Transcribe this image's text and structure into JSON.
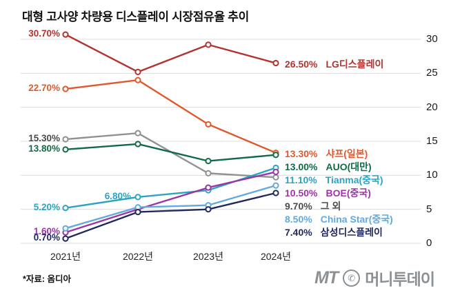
{
  "title": "대형 고사양 차량용 디스플레이 시장점유율 추이",
  "footer": {
    "source": "*자료: 옴디아",
    "logo_mt": "MT",
    "logo_phone_icon": "phone-icon",
    "logo_name": "머니투데이"
  },
  "chart_data": {
    "type": "line",
    "x": [
      "2021년",
      "2022년",
      "2023년",
      "2024년"
    ],
    "ylim": [
      0,
      30
    ],
    "yticks": [
      30,
      25,
      20,
      15,
      10,
      5,
      0
    ],
    "grid": true,
    "legend_position": "right-of-last-point",
    "series": [
      {
        "name": "LG디스플레이",
        "color": "#b23230",
        "values": [
          30.7,
          25.2,
          29.2,
          26.5
        ],
        "start_label": "30.70%",
        "end_label": "26.50%"
      },
      {
        "name": "샤프(일본)",
        "color": "#e0592d",
        "values": [
          22.7,
          24.0,
          17.5,
          13.3
        ],
        "start_label": "22.70%",
        "end_label": "13.30%"
      },
      {
        "name": "그 외",
        "color": "#8e9293",
        "label_color": "#4a4a4a",
        "values": [
          15.3,
          16.2,
          10.3,
          9.7
        ],
        "start_label": "15.30%",
        "end_label": "9.70%"
      },
      {
        "name": "AUO(대만)",
        "color": "#106b46",
        "values": [
          13.8,
          14.6,
          12.1,
          13.0
        ],
        "start_label": "13.80%",
        "end_label": "13.00%"
      },
      {
        "name": "Tianma(중국)",
        "color": "#2aa4c0",
        "values": [
          5.2,
          6.8,
          7.8,
          11.1
        ],
        "start_label": "5.20%",
        "mid_label": {
          "x_index": 1,
          "text": "6.80%"
        },
        "end_label": "11.10%"
      },
      {
        "name": "BOE(중국)",
        "color": "#9a35a6",
        "values": [
          1.6,
          5.0,
          8.2,
          10.5
        ],
        "start_label": "1.60%",
        "end_label": "10.50%"
      },
      {
        "name": "China Star(중국)",
        "color": "#63a9dc",
        "values": [
          2.2,
          5.3,
          5.6,
          8.5
        ],
        "end_label": "8.50%"
      },
      {
        "name": "삼성디스플레이",
        "color": "#21295c",
        "values": [
          0.7,
          4.6,
          5.0,
          7.4
        ],
        "start_label": "0.70%",
        "end_label": "7.40%"
      }
    ]
  }
}
